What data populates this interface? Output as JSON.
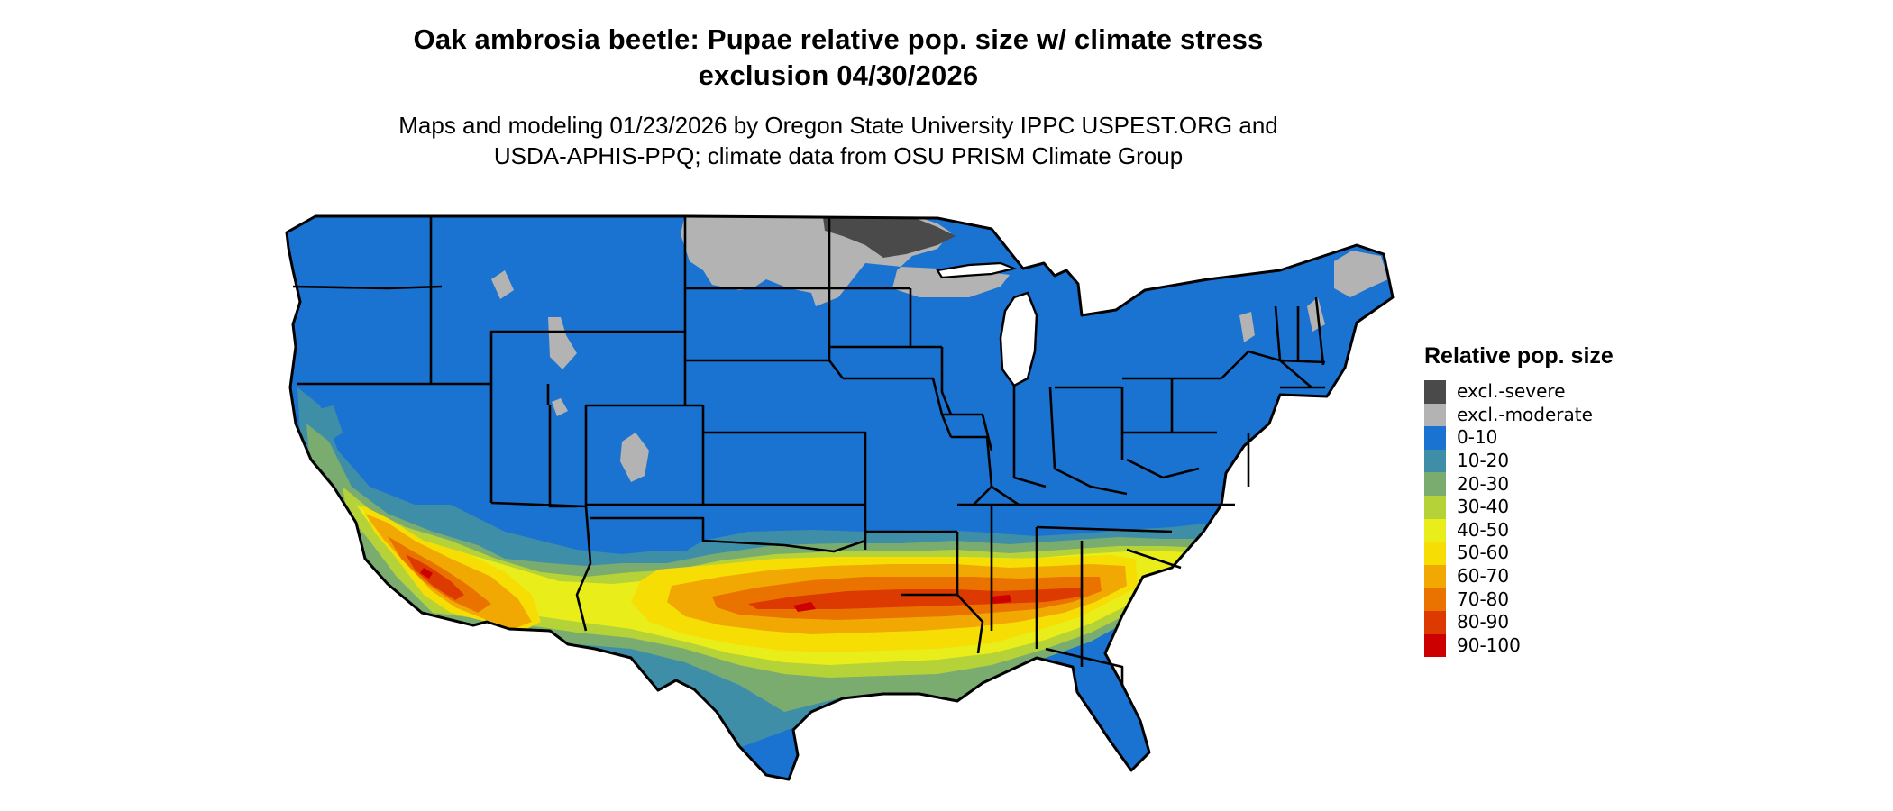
{
  "title": {
    "line1": "Oak ambrosia beetle: Pupae relative pop. size w/ climate stress",
    "line2": "exclusion 04/30/2026"
  },
  "subtitle": {
    "line1": "Maps and modeling 01/23/2026 by Oregon State University IPPC USPEST.ORG and",
    "line2": "USDA-APHIS-PPQ; climate data from OSU PRISM Climate Group"
  },
  "legend": {
    "title": "Relative pop. size",
    "items": [
      {
        "label": "excl.-severe",
        "color": "#4a4a4a"
      },
      {
        "label": "excl.-moderate",
        "color": "#b3b3b3"
      },
      {
        "label": "0-10",
        "color": "#1a73d1"
      },
      {
        "label": "10-20",
        "color": "#3f8ea8"
      },
      {
        "label": "20-30",
        "color": "#7aac70"
      },
      {
        "label": "30-40",
        "color": "#b5d238"
      },
      {
        "label": "40-50",
        "color": "#e9ee1a"
      },
      {
        "label": "50-60",
        "color": "#f6de05"
      },
      {
        "label": "60-70",
        "color": "#f2a802"
      },
      {
        "label": "70-80",
        "color": "#ea7300"
      },
      {
        "label": "80-90",
        "color": "#dc3a00"
      },
      {
        "label": "90-100",
        "color": "#cc0000"
      }
    ]
  }
}
